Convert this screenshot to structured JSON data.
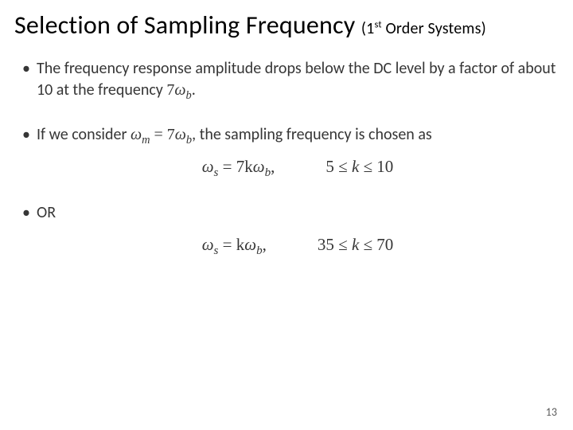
{
  "title": {
    "main": "Selection of Sampling Frequency",
    "sub_prefix": "(1",
    "sub_super": "st",
    "sub_suffix": " Order Systems)",
    "fontsize_main": 32,
    "fontsize_sub": 20,
    "color": "#000000"
  },
  "bulletStyle": {
    "fontsize": 20,
    "color": "#363636",
    "lineheight": 1.32
  },
  "b1": {
    "t1": "The frequency response amplitude drops below the DC level by a factor of about 10 at the frequency ",
    "seven": "7",
    "omega": "ω",
    "subb": "b",
    "dot": "."
  },
  "b2": {
    "t1": "If we consider ",
    "omegam_w": "ω",
    "omegam_m": "m",
    "eq": " = 7",
    "omegab_w": "ω",
    "omegab_b": "b",
    "t2": ", the sampling frequency is chosen as"
  },
  "eq1": {
    "lhs_w": "ω",
    "lhs_s": "s",
    "mid": " = 7k",
    "wb_w": "ω",
    "wb_b": "b",
    "comma": ",",
    "rhs_l": "5 ≤ ",
    "rhs_k": "k",
    "rhs_r": " ≤ 10"
  },
  "b3": {
    "text": "OR"
  },
  "eq2": {
    "lhs_w": "ω",
    "lhs_s": "s",
    "mid": " = k",
    "wb_w": "ω",
    "wb_b": "b",
    "comma": ",",
    "rhs_l": "35 ≤ ",
    "rhs_k": "k",
    "rhs_r": " ≤ 70"
  },
  "pagenum": "13",
  "colors": {
    "background": "#ffffff",
    "text": "#000000",
    "bullet": "#363636",
    "pagenum": "#5a5a5a"
  }
}
